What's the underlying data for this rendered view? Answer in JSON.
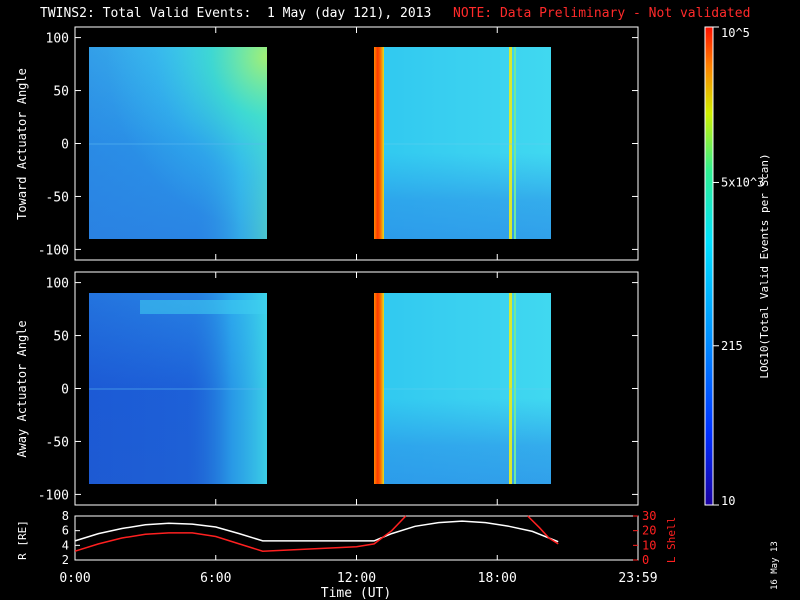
{
  "header": {
    "title": "TWINS2: Total Valid Events:  1 May (day 121), 2013",
    "note": "NOTE: Data Preliminary - Not validated"
  },
  "footer": {
    "date_stamp": "16 May 13"
  },
  "colors": {
    "background": "#000000",
    "axes": "#ffffff",
    "note": "#ff2a2a",
    "l_shell_line": "#ff2020",
    "r_line": "#ffffff"
  },
  "chart_data": [
    {
      "type": "heatmap",
      "panel": "top",
      "ylabel": "Toward Actuator Angle",
      "ylim": [
        -110,
        110
      ],
      "yticks": [
        -100,
        -50,
        0,
        50,
        100
      ],
      "x_unit": "hours UT",
      "xlim": [
        0,
        24
      ],
      "data_blocks": [
        {
          "x": [
            0.0,
            7.95
          ],
          "y": [
            -88,
            90
          ],
          "appearance": "blue-cyan, brightening toward green at upper right"
        },
        {
          "x": [
            12.75,
            20.6
          ],
          "y": [
            -88,
            90
          ],
          "appearance": "cyan, with red/orange band near 12.8 and yellow streak near 18.3"
        }
      ]
    },
    {
      "type": "heatmap",
      "panel": "middle",
      "ylabel": "Away Actuator Angle",
      "ylim": [
        -110,
        110
      ],
      "yticks": [
        -100,
        -50,
        0,
        50,
        100
      ],
      "x_unit": "hours UT",
      "xlim": [
        0,
        24
      ],
      "data_blocks": [
        {
          "x": [
            0.0,
            7.95
          ],
          "y": [
            -88,
            90
          ],
          "appearance": "dark blue core, cyan edges"
        },
        {
          "x": [
            12.75,
            20.6
          ],
          "y": [
            -88,
            90
          ],
          "appearance": "cyan, with red/orange band near 12.8 and yellow streak near 18.3"
        }
      ]
    },
    {
      "type": "line",
      "panel": "bottom",
      "xlabel": "Time (UT)",
      "xticks": [
        "0:00",
        "6:00",
        "12:00",
        "18:00",
        "23:59"
      ],
      "xtick_hours": [
        0,
        6,
        12,
        18,
        24
      ],
      "left_axis": {
        "label": "R [RE]",
        "ylim": [
          2,
          8
        ],
        "ticks": [
          2,
          4,
          6,
          8
        ]
      },
      "right_axis": {
        "label": "L Shell",
        "ylim": [
          0,
          30
        ],
        "ticks": [
          0,
          10,
          20,
          30
        ]
      },
      "series": [
        {
          "name": "R [RE]",
          "axis": "left",
          "color": "#ffffff",
          "x": [
            0,
            1,
            2,
            3,
            4,
            5,
            6,
            7,
            8,
            9,
            10,
            11,
            12,
            12.75,
            13.5,
            14.5,
            15.5,
            16.5,
            17.5,
            18.5,
            19.5,
            20.6
          ],
          "y": [
            4.6,
            5.6,
            6.3,
            6.8,
            7.0,
            6.9,
            6.5,
            5.6,
            4.6,
            4.6,
            4.6,
            4.6,
            4.6,
            4.6,
            5.6,
            6.6,
            7.1,
            7.3,
            7.1,
            6.6,
            5.9,
            4.5
          ]
        },
        {
          "name": "L Shell",
          "axis": "right",
          "color": "#ff2020",
          "x": [
            0,
            1,
            2,
            3,
            4,
            5,
            6,
            7,
            8,
            10,
            12,
            12.75,
            13.5,
            14.1
          ],
          "y": [
            6,
            11,
            15,
            17.5,
            18.5,
            18.5,
            16,
            11,
            6,
            7.5,
            9,
            11,
            20,
            30
          ]
        },
        {
          "name": "L Shell (late)",
          "axis": "right",
          "color": "#ff2020",
          "x": [
            19.3,
            19.8,
            20.2,
            20.6
          ],
          "y": [
            30,
            22,
            15,
            11
          ]
        }
      ]
    },
    {
      "type": "colorbar",
      "label": "LOG10(Total Valid Events per Scan)",
      "range": [
        10,
        100000
      ],
      "scale": "log",
      "tick_labels": [
        "10",
        "215",
        "5x10^3",
        "10^5"
      ],
      "tick_values": [
        10,
        215,
        5000,
        100000
      ]
    }
  ]
}
